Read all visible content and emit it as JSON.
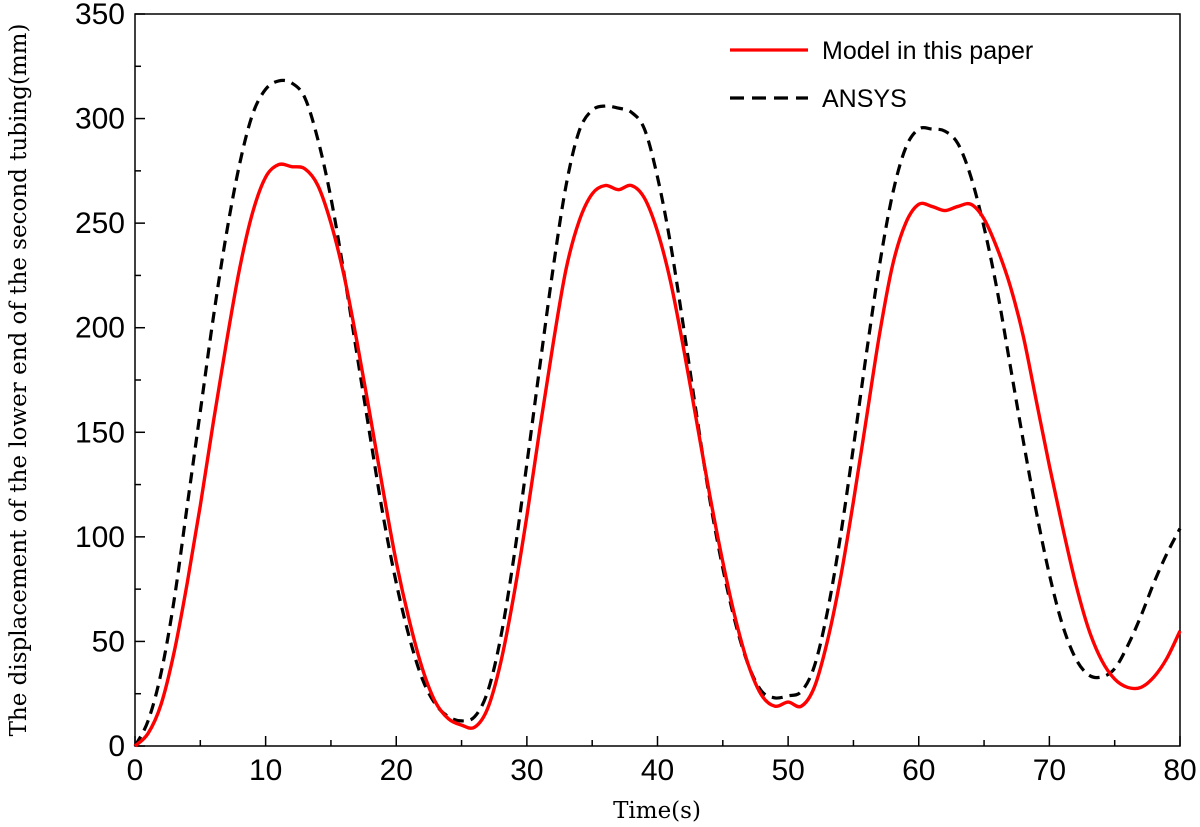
{
  "chart_data": {
    "type": "line",
    "title": "",
    "xlabel": "Time(s)",
    "ylabel": "The displacement of the lower end of the second tubing(mm)",
    "xlim": [
      0,
      80
    ],
    "ylim": [
      0,
      350
    ],
    "xticks": [
      "0",
      "10",
      "20",
      "30",
      "40",
      "50",
      "60",
      "70",
      "80"
    ],
    "yticks": [
      "0",
      "50",
      "100",
      "150",
      "200",
      "250",
      "300",
      "350"
    ],
    "grid": false,
    "legend_position": "top-right",
    "series": [
      {
        "name": "Model in this paper",
        "color": "#ff0000",
        "style": "solid",
        "x": [
          0,
          1,
          2,
          3,
          4,
          5,
          6,
          7,
          8,
          9,
          10,
          11,
          12,
          13,
          14,
          15,
          16,
          17,
          18,
          19,
          20,
          21,
          22,
          23,
          24,
          25,
          26,
          27,
          28,
          29,
          30,
          31,
          32,
          33,
          34,
          35,
          36,
          37,
          38,
          39,
          40,
          41,
          42,
          43,
          44,
          45,
          46,
          47,
          48,
          49,
          50,
          51,
          52,
          53,
          54,
          55,
          56,
          57,
          58,
          59,
          60,
          61,
          62,
          63,
          64,
          65,
          66,
          67,
          68,
          69,
          70,
          71,
          72,
          73,
          74,
          75,
          76,
          77,
          78,
          79,
          80
        ],
        "y": [
          0,
          6,
          20,
          45,
          78,
          115,
          155,
          193,
          228,
          255,
          272,
          278,
          277,
          276,
          268,
          250,
          225,
          193,
          158,
          122,
          88,
          60,
          37,
          21,
          13,
          10,
          9,
          18,
          40,
          72,
          110,
          152,
          192,
          228,
          251,
          264,
          268,
          266,
          268,
          262,
          246,
          222,
          190,
          155,
          120,
          88,
          60,
          38,
          24,
          19,
          21,
          19,
          28,
          50,
          80,
          117,
          157,
          197,
          230,
          250,
          259,
          258,
          256,
          258,
          259,
          252,
          238,
          220,
          196,
          165,
          134,
          105,
          78,
          56,
          41,
          32,
          28,
          28,
          33,
          42,
          55
        ]
      },
      {
        "name": "ANSYS",
        "color": "#000000",
        "style": "dashed",
        "x": [
          0,
          1,
          2,
          3,
          4,
          5,
          6,
          7,
          8,
          9,
          10,
          11,
          12,
          13,
          14,
          15,
          16,
          17,
          18,
          19,
          20,
          21,
          22,
          23,
          24,
          25,
          26,
          27,
          28,
          29,
          30,
          31,
          32,
          33,
          34,
          35,
          36,
          37,
          38,
          39,
          40,
          41,
          42,
          43,
          44,
          45,
          46,
          47,
          48,
          49,
          50,
          51,
          52,
          53,
          54,
          55,
          56,
          57,
          58,
          59,
          60,
          61,
          62,
          63,
          64,
          65,
          66,
          67,
          68,
          69,
          70,
          71,
          72,
          73,
          74,
          75,
          76,
          77,
          78,
          79,
          80
        ],
        "y": [
          0,
          12,
          35,
          70,
          115,
          160,
          205,
          245,
          278,
          302,
          314,
          318,
          317,
          310,
          290,
          262,
          226,
          187,
          148,
          110,
          78,
          52,
          32,
          20,
          14,
          12,
          14,
          26,
          52,
          90,
          135,
          182,
          228,
          268,
          294,
          304,
          306,
          305,
          303,
          295,
          272,
          240,
          200,
          158,
          118,
          85,
          58,
          38,
          26,
          23,
          24,
          26,
          38,
          64,
          100,
          143,
          188,
          230,
          264,
          286,
          295,
          295,
          294,
          288,
          272,
          248,
          218,
          182,
          146,
          112,
          82,
          58,
          42,
          34,
          33,
          37,
          48,
          62,
          78,
          92,
          104
        ]
      }
    ]
  }
}
